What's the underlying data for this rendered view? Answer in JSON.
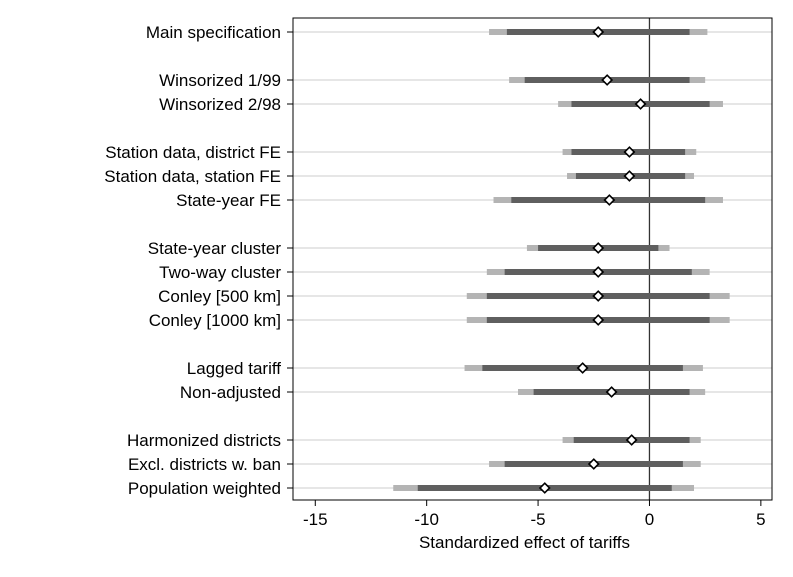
{
  "chart_data": {
    "type": "coefficient-plot",
    "xlabel": "Standardized effect of tariffs",
    "xlim": [
      -16,
      5.5
    ],
    "xticks": [
      -15,
      -10,
      -5,
      0,
      5
    ],
    "reference_line": 0,
    "grid": true,
    "rows": [
      {
        "label": "Main specification",
        "slot": 0,
        "est": -2.3,
        "ci95": [
          -6.4,
          1.8
        ],
        "ci99": [
          -7.2,
          2.6
        ]
      },
      {
        "label": "Winsorized 1/99",
        "slot": 2,
        "est": -1.9,
        "ci95": [
          -5.6,
          1.8
        ],
        "ci99": [
          -6.3,
          2.5
        ]
      },
      {
        "label": "Winsorized 2/98",
        "slot": 3,
        "est": -0.4,
        "ci95": [
          -3.5,
          2.7
        ],
        "ci99": [
          -4.1,
          3.3
        ]
      },
      {
        "label": "Station data, district FE",
        "slot": 5,
        "est": -0.9,
        "ci95": [
          -3.5,
          1.6
        ],
        "ci99": [
          -3.9,
          2.1
        ]
      },
      {
        "label": "Station data, station FE",
        "slot": 6,
        "est": -0.9,
        "ci95": [
          -3.3,
          1.6
        ],
        "ci99": [
          -3.7,
          2.0
        ]
      },
      {
        "label": "State-year FE",
        "slot": 7,
        "est": -1.8,
        "ci95": [
          -6.2,
          2.5
        ],
        "ci99": [
          -7.0,
          3.3
        ]
      },
      {
        "label": "State-year cluster",
        "slot": 9,
        "est": -2.3,
        "ci95": [
          -5.0,
          0.4
        ],
        "ci99": [
          -5.5,
          0.9
        ]
      },
      {
        "label": "Two-way cluster",
        "slot": 10,
        "est": -2.3,
        "ci95": [
          -6.5,
          1.9
        ],
        "ci99": [
          -7.3,
          2.7
        ]
      },
      {
        "label": "Conley [500 km]",
        "slot": 11,
        "est": -2.3,
        "ci95": [
          -7.3,
          2.7
        ],
        "ci99": [
          -8.2,
          3.6
        ]
      },
      {
        "label": "Conley [1000 km]",
        "slot": 12,
        "est": -2.3,
        "ci95": [
          -7.3,
          2.7
        ],
        "ci99": [
          -8.2,
          3.6
        ]
      },
      {
        "label": "Lagged tariff",
        "slot": 14,
        "est": -3.0,
        "ci95": [
          -7.5,
          1.5
        ],
        "ci99": [
          -8.3,
          2.4
        ]
      },
      {
        "label": "Non-adjusted",
        "slot": 15,
        "est": -1.7,
        "ci95": [
          -5.2,
          1.8
        ],
        "ci99": [
          -5.9,
          2.5
        ]
      },
      {
        "label": "Harmonized districts",
        "slot": 17,
        "est": -0.8,
        "ci95": [
          -3.4,
          1.8
        ],
        "ci99": [
          -3.9,
          2.3
        ]
      },
      {
        "label": "Excl. districts w. ban",
        "slot": 18,
        "est": -2.5,
        "ci95": [
          -6.5,
          1.5
        ],
        "ci99": [
          -7.2,
          2.3
        ]
      },
      {
        "label": "Population weighted",
        "slot": 19,
        "est": -4.7,
        "ci95": [
          -10.4,
          1.0
        ],
        "ci99": [
          -11.5,
          2.0
        ]
      }
    ],
    "colors": {
      "ci95": "#5f5f5f",
      "ci99": "#b4b4b4",
      "grid": "#dedede",
      "refline": "#333333",
      "frame": "#000000",
      "marker_fill": "#ffffff",
      "marker_stroke": "#000000"
    }
  }
}
